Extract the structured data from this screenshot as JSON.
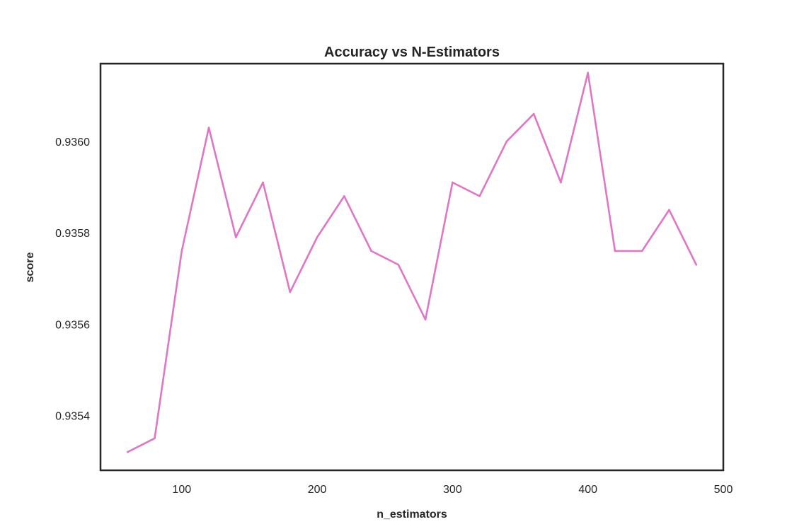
{
  "chart_data": {
    "type": "line",
    "title": "Accuracy vs N-Estimators",
    "xlabel": "n_estimators",
    "ylabel": "score",
    "xlim": [
      40,
      500
    ],
    "ylim": [
      0.93528,
      0.93617
    ],
    "xticks": [
      100,
      200,
      300,
      400,
      500
    ],
    "xtick_labels": [
      "100",
      "200",
      "300",
      "400",
      "500"
    ],
    "yticks": [
      0.9354,
      0.9356,
      0.9358,
      0.936
    ],
    "ytick_labels": [
      "0.9354",
      "0.9356",
      "0.9358",
      "0.9360"
    ],
    "grid": false,
    "line_color": "#dd77c6",
    "frame_color": "#262626",
    "series": [
      {
        "x": [
          60,
          80,
          100,
          120,
          140,
          160,
          180,
          200,
          220,
          240,
          260,
          280,
          300,
          320,
          340,
          360,
          380,
          400,
          420,
          440,
          460,
          480
        ],
        "values": [
          0.93532,
          0.93535,
          0.93576,
          0.93603,
          0.93579,
          0.93591,
          0.93567,
          0.93579,
          0.93588,
          0.93576,
          0.93573,
          0.93561,
          0.93591,
          0.93588,
          0.936,
          0.93606,
          0.93591,
          0.93615,
          0.93576,
          0.93576,
          0.93585,
          0.93573
        ]
      }
    ]
  }
}
